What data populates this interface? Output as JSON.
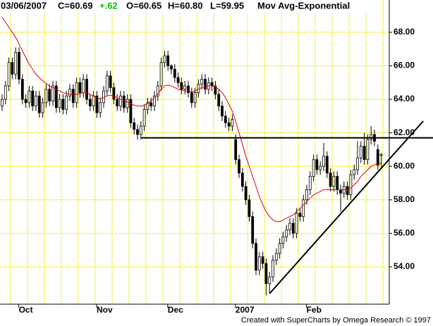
{
  "chart_data": {
    "type": "candlestick",
    "header": {
      "date": "03/06/2007",
      "close": "C=60.69",
      "change": "+.62",
      "open": "O=60.65",
      "high": "H=60.80",
      "low": "L=59.95",
      "study": "Mov Avg-Exponential"
    },
    "footer": "Created with SuperCharts by Omega Research © 1997",
    "categories": [
      null,
      null,
      null,
      null,
      null,
      null,
      null,
      "Oct",
      null,
      null,
      null,
      null,
      null,
      null,
      null,
      null,
      null,
      null,
      null,
      null,
      null,
      null,
      null,
      null,
      null,
      null,
      null,
      null,
      null,
      null,
      "Nov",
      null,
      null,
      null,
      null,
      null,
      null,
      null,
      null,
      null,
      null,
      null,
      null,
      null,
      null,
      null,
      null,
      null,
      null,
      null,
      null,
      "Dec",
      null,
      null,
      null,
      null,
      null,
      null,
      null,
      null,
      null,
      null,
      null,
      null,
      null,
      null,
      null,
      null,
      null,
      null,
      null,
      "2007",
      null,
      null,
      null,
      null,
      null,
      null,
      null,
      null,
      null,
      null,
      null,
      null,
      null,
      null,
      null,
      null,
      null,
      null,
      null,
      null,
      "Feb",
      null,
      null,
      null,
      null,
      null,
      null,
      null,
      null,
      null,
      null,
      null,
      null,
      null,
      null,
      null,
      null,
      null,
      null,
      null,
      null
    ],
    "open": [
      63.6,
      64.0,
      64.8,
      66.2,
      65.5,
      66.8,
      65.2,
      64.0,
      63.8,
      64.5,
      63.6,
      64.2,
      63.2,
      63.8,
      64.6,
      63.9,
      64.8,
      63.5,
      64.0,
      63.4,
      64.2,
      64.6,
      63.8,
      65.0,
      64.4,
      65.2,
      64.0,
      63.6,
      64.2,
      63.2,
      63.8,
      64.5,
      65.4,
      64.7,
      64.0,
      63.6,
      64.2,
      63.5,
      64.0,
      62.6,
      62.2,
      61.9,
      62.4,
      63.4,
      63.8,
      63.6,
      64.2,
      64.8,
      66.2,
      66.6,
      66.0,
      65.8,
      65.3,
      65.0,
      64.6,
      64.8,
      64.4,
      63.8,
      64.4,
      64.9,
      65.2,
      64.6,
      65.0,
      64.8,
      64.3,
      63.6,
      63.0,
      62.6,
      62.4,
      61.6,
      60.4,
      59.6,
      58.8,
      58.0,
      57.0,
      55.4,
      53.8,
      54.6,
      54.2,
      53.0,
      53.4,
      54.4,
      54.8,
      55.4,
      55.8,
      56.2,
      56.6,
      56.0,
      57.2,
      57.0,
      58.0,
      58.6,
      59.4,
      60.4,
      59.8,
      60.0,
      60.6,
      59.6,
      58.8,
      59.4,
      58.6,
      58.4,
      58.8,
      58.3,
      59.5,
      59.8,
      60.5,
      61.2,
      60.4,
      61.6,
      61.9,
      61.0,
      60.65
    ],
    "high": [
      64.3,
      65.1,
      66.5,
      66.5,
      67.1,
      67.1,
      65.5,
      64.3,
      64.8,
      64.8,
      64.5,
      64.5,
      64.1,
      64.9,
      64.9,
      65.1,
      65.1,
      64.3,
      64.3,
      64.5,
      64.9,
      64.9,
      65.3,
      65.3,
      65.5,
      65.5,
      64.3,
      64.5,
      64.5,
      64.1,
      64.8,
      65.7,
      65.7,
      65.0,
      64.3,
      64.5,
      64.5,
      64.3,
      64.3,
      62.9,
      62.5,
      62.7,
      63.7,
      64.1,
      64.1,
      64.5,
      65.1,
      66.5,
      66.9,
      66.9,
      66.1,
      66.1,
      65.6,
      65.3,
      65.1,
      65.1,
      64.7,
      64.7,
      65.2,
      65.5,
      65.5,
      65.3,
      65.3,
      65.1,
      64.6,
      63.9,
      63.3,
      62.9,
      63.1,
      61.9,
      60.7,
      59.9,
      59.1,
      58.3,
      57.3,
      55.7,
      54.9,
      54.9,
      54.5,
      53.7,
      54.7,
      55.1,
      55.7,
      56.1,
      56.5,
      56.9,
      56.9,
      57.5,
      57.5,
      58.3,
      58.9,
      59.7,
      60.7,
      60.7,
      60.3,
      61.4,
      60.9,
      59.9,
      59.7,
      59.7,
      58.9,
      59.1,
      59.1,
      59.8,
      60.1,
      61.5,
      61.5,
      62.0,
      61.9,
      62.4,
      62.2,
      61.3,
      60.8
    ],
    "low": [
      63.3,
      63.7,
      64.5,
      65.2,
      65.2,
      64.9,
      63.7,
      63.5,
      63.5,
      63.3,
      63.3,
      62.9,
      62.9,
      63.5,
      63.6,
      63.6,
      63.2,
      63.2,
      63.1,
      63.1,
      63.9,
      63.5,
      63.5,
      64.1,
      64.1,
      63.7,
      63.3,
      63.3,
      62.9,
      62.9,
      63.5,
      64.2,
      64.4,
      63.7,
      63.3,
      63.3,
      63.2,
      63.2,
      62.3,
      61.9,
      61.6,
      61.6,
      62.1,
      63.1,
      63.3,
      63.3,
      63.9,
      64.5,
      65.9,
      65.7,
      65.5,
      65.0,
      64.7,
      64.3,
      64.3,
      64.1,
      63.5,
      63.5,
      64.1,
      64.6,
      64.3,
      64.3,
      64.5,
      64.0,
      63.3,
      62.7,
      62.3,
      62.1,
      62.1,
      60.1,
      59.3,
      58.5,
      57.7,
      56.7,
      55.1,
      53.5,
      53.5,
      53.9,
      52.3,
      52.4,
      53.1,
      54.1,
      54.5,
      55.1,
      55.5,
      55.9,
      55.7,
      55.7,
      56.7,
      56.7,
      57.7,
      58.3,
      59.1,
      59.5,
      59.5,
      59.7,
      59.3,
      58.5,
      58.5,
      58.3,
      57.3,
      58.1,
      58.0,
      58.0,
      59.2,
      59.5,
      60.2,
      60.1,
      60.1,
      61.3,
      61.2,
      59.8,
      59.95
    ],
    "close": [
      64.0,
      64.8,
      66.2,
      65.5,
      66.8,
      65.2,
      64.0,
      63.8,
      64.5,
      63.6,
      64.2,
      63.2,
      63.8,
      64.6,
      63.9,
      64.8,
      63.5,
      64.0,
      63.4,
      64.2,
      64.6,
      63.8,
      65.0,
      64.4,
      65.2,
      64.0,
      63.6,
      64.2,
      63.2,
      63.8,
      64.5,
      65.4,
      64.7,
      64.0,
      63.6,
      64.2,
      63.5,
      64.0,
      62.6,
      62.2,
      61.9,
      62.4,
      63.4,
      63.8,
      63.6,
      64.2,
      64.8,
      66.2,
      66.6,
      66.0,
      65.8,
      65.3,
      65.0,
      64.6,
      64.8,
      64.4,
      63.8,
      64.4,
      64.9,
      65.2,
      64.6,
      65.0,
      64.8,
      64.3,
      63.6,
      63.0,
      62.6,
      62.4,
      62.8,
      60.4,
      59.6,
      58.8,
      58.0,
      57.0,
      55.4,
      53.8,
      54.6,
      54.2,
      53.0,
      53.4,
      54.4,
      54.8,
      55.4,
      55.8,
      56.2,
      56.6,
      56.0,
      57.2,
      57.0,
      58.0,
      58.6,
      59.4,
      60.4,
      59.8,
      60.0,
      60.6,
      59.6,
      58.8,
      59.4,
      58.6,
      58.4,
      58.8,
      58.3,
      59.5,
      59.8,
      60.5,
      61.2,
      60.4,
      61.6,
      61.9,
      61.5,
      60.07,
      60.69
    ],
    "ema": {
      "color": "#e00000",
      "values": [
        68.9,
        68.6,
        68.3,
        68.0,
        67.7,
        67.3,
        66.9,
        66.5,
        66.1,
        65.8,
        65.5,
        65.3,
        65.1,
        64.95,
        64.8,
        64.7,
        64.6,
        64.5,
        64.4,
        64.35,
        64.3,
        64.3,
        64.3,
        64.35,
        64.4,
        64.4,
        64.3,
        64.2,
        64.1,
        64.05,
        64.1,
        64.2,
        64.25,
        64.2,
        64.1,
        64.0,
        63.9,
        63.85,
        63.75,
        63.65,
        63.6,
        63.6,
        63.65,
        63.75,
        63.9,
        64.1,
        64.3,
        64.6,
        64.8,
        64.85,
        64.8,
        64.7,
        64.6,
        64.55,
        64.5,
        64.5,
        64.45,
        64.5,
        64.6,
        64.7,
        64.75,
        64.8,
        64.8,
        64.75,
        64.6,
        64.4,
        64.1,
        63.7,
        63.3,
        62.7,
        62.0,
        61.3,
        60.6,
        60.0,
        59.4,
        58.8,
        58.2,
        57.7,
        57.3,
        57.0,
        56.8,
        56.7,
        56.7,
        56.8,
        56.9,
        57.0,
        57.1,
        57.3,
        57.5,
        57.7,
        57.9,
        58.1,
        58.3,
        58.4,
        58.5,
        58.6,
        58.6,
        58.6,
        58.6,
        58.6,
        58.6,
        58.6,
        58.6,
        58.7,
        58.9,
        59.1,
        59.4,
        59.6,
        59.8,
        60.0,
        60.1,
        60.15,
        60.2
      ]
    },
    "trendlines": [
      {
        "x": [
          41,
          127.3
        ],
        "y": [
          61.7,
          61.7
        ]
      },
      {
        "x": [
          79,
          124.4
        ],
        "y": [
          52.4,
          62.7
        ]
      }
    ],
    "ylim": [
      51.77,
      69.93
    ],
    "yticks": [
      {
        "value": 54,
        "label": "54.00"
      },
      {
        "value": 56,
        "label": "56.00"
      },
      {
        "value": 58,
        "label": "58.00"
      },
      {
        "value": 60,
        "label": "60.00"
      },
      {
        "value": 62,
        "label": "62.00"
      },
      {
        "value": 64,
        "label": "64.00"
      },
      {
        "value": 66,
        "label": "66.00"
      },
      {
        "value": 68,
        "label": "68.00"
      }
    ],
    "grid": true,
    "grid_color": "#f4f040"
  }
}
